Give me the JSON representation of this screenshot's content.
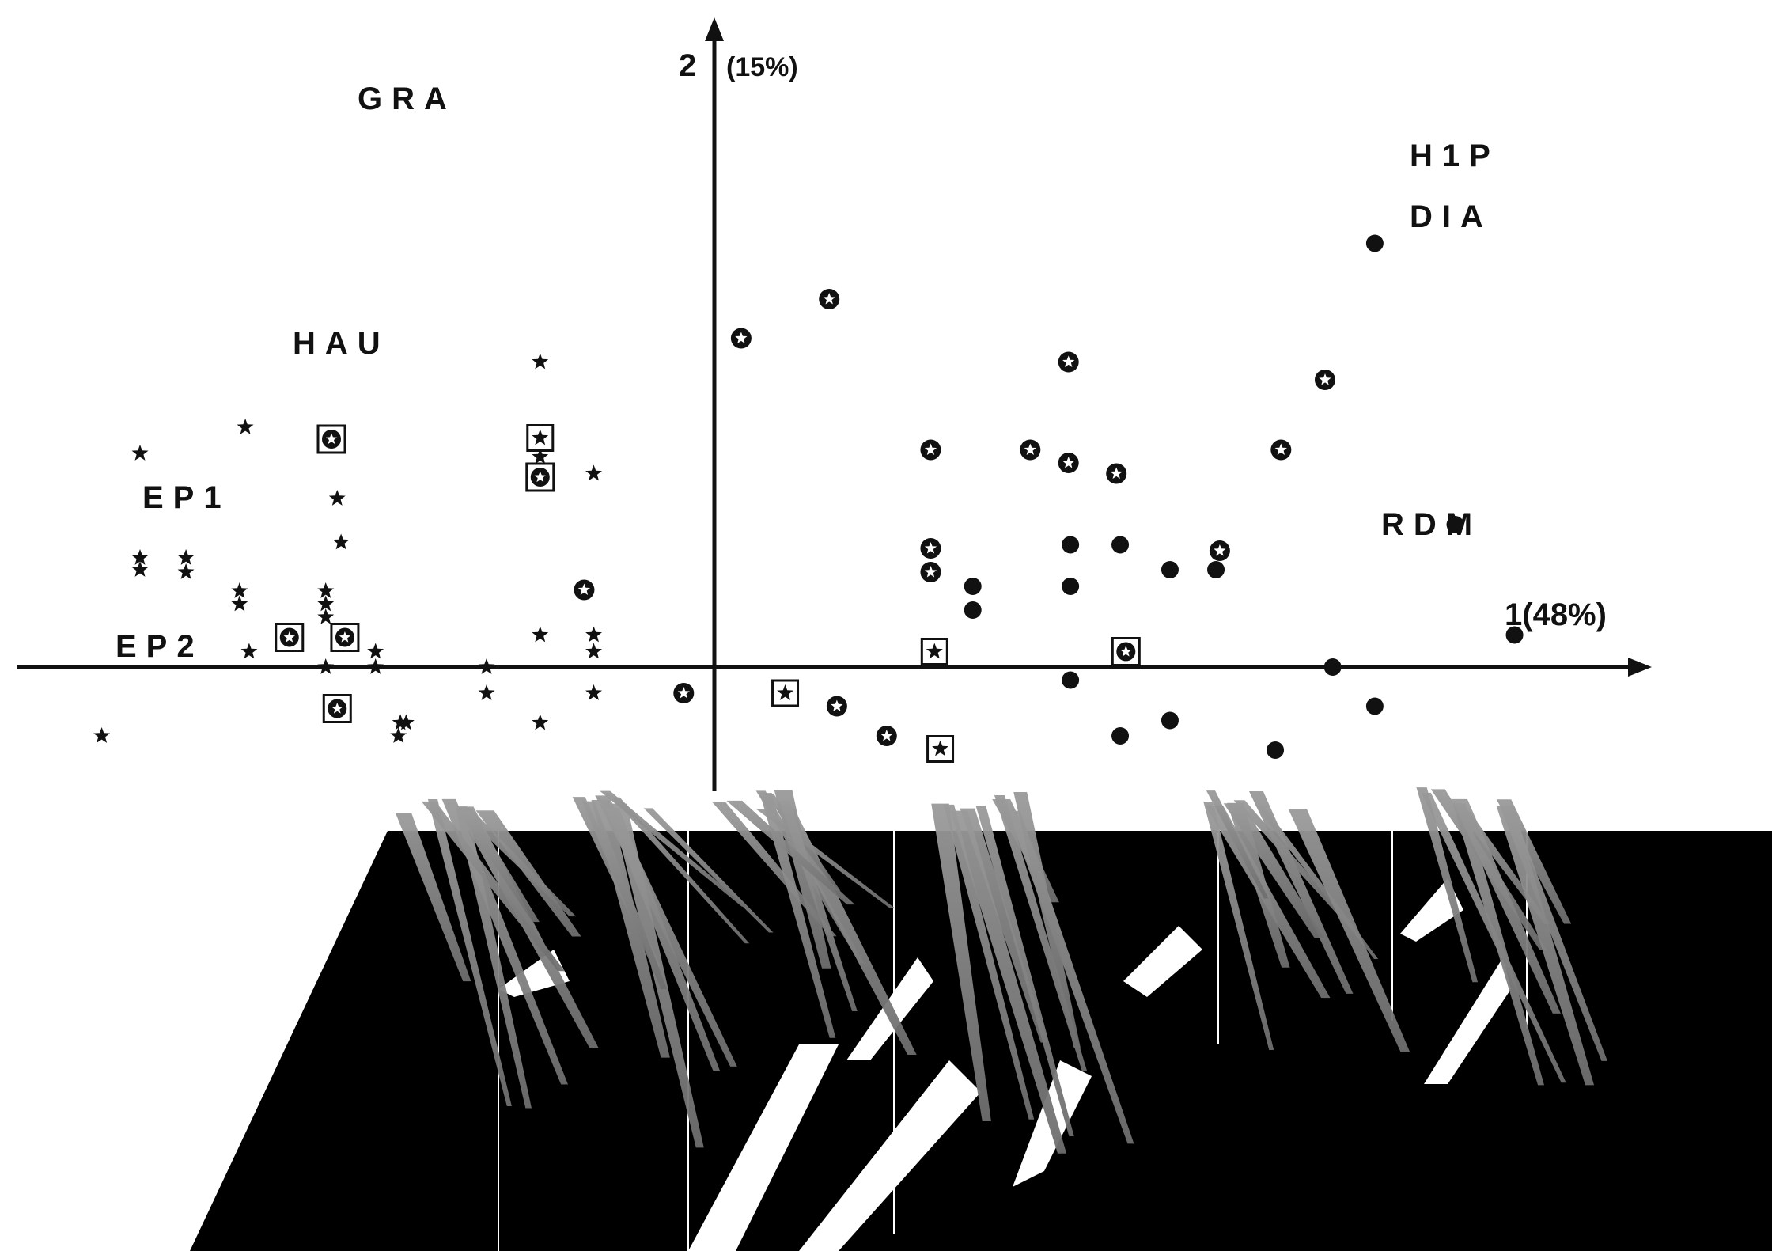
{
  "chart_data": {
    "type": "scatter",
    "title": "",
    "xlabel": "1(48%)",
    "ylabel": "(15%)",
    "ylabel_number": "2",
    "xlim": [
      -4.3,
      5.5
    ],
    "ylim": [
      -1.55,
      3.7
    ],
    "grid": false,
    "axes_through_origin": true,
    "marker_color": "#111111",
    "region_labels": [
      "GRA",
      "HAU",
      "EP1",
      "EP2",
      "H1P",
      "DIA",
      "RDM"
    ],
    "series": [
      {
        "marker": "star",
        "points": [
          [
            -3.0,
            1.8
          ],
          [
            -2.45,
            2.02
          ],
          [
            -1.97,
            1.42
          ],
          [
            -1.95,
            1.05
          ],
          [
            -3.0,
            0.92
          ],
          [
            -2.76,
            0.92
          ],
          [
            -3.0,
            0.82
          ],
          [
            -2.76,
            0.8
          ],
          [
            -2.48,
            0.64
          ],
          [
            -2.48,
            0.53
          ],
          [
            -2.03,
            0.64
          ],
          [
            -2.03,
            0.53
          ],
          [
            -2.03,
            0.42
          ],
          [
            -2.43,
            0.13
          ],
          [
            -1.77,
            0.13
          ],
          [
            -1.77,
            0.0
          ],
          [
            -2.03,
            0.0
          ],
          [
            -1.19,
            0.0
          ],
          [
            -0.91,
            2.57
          ],
          [
            -0.91,
            1.77
          ],
          [
            -0.63,
            1.63
          ],
          [
            -0.91,
            0.27
          ],
          [
            -0.63,
            0.27
          ],
          [
            -0.63,
            0.13
          ],
          [
            -1.19,
            -0.22
          ],
          [
            -0.63,
            -0.22
          ],
          [
            -0.91,
            -0.47
          ],
          [
            -1.61,
            -0.47
          ],
          [
            -1.64,
            -0.47
          ],
          [
            -1.65,
            -0.58
          ],
          [
            -3.2,
            -0.58
          ]
        ]
      },
      {
        "marker": "star-in-box",
        "points": [
          [
            -0.91,
            1.93
          ],
          [
            1.15,
            0.13
          ],
          [
            0.37,
            -0.22
          ],
          [
            1.18,
            -0.69
          ]
        ]
      },
      {
        "marker": "circle-star-in-box",
        "points": [
          [
            -2.0,
            1.92
          ],
          [
            -0.91,
            1.6
          ],
          [
            -2.22,
            0.25
          ],
          [
            -1.93,
            0.25
          ],
          [
            -1.97,
            -0.35
          ],
          [
            2.15,
            0.13
          ]
        ]
      },
      {
        "marker": "circle-star",
        "points": [
          [
            0.6,
            3.1
          ],
          [
            0.14,
            2.77
          ],
          [
            1.85,
            2.57
          ],
          [
            3.19,
            2.42
          ],
          [
            1.13,
            1.83
          ],
          [
            1.65,
            1.83
          ],
          [
            1.85,
            1.72
          ],
          [
            2.1,
            1.63
          ],
          [
            2.96,
            1.83
          ],
          [
            1.13,
            1.0
          ],
          [
            1.13,
            0.8
          ],
          [
            -0.68,
            0.65
          ],
          [
            -0.16,
            -0.22
          ],
          [
            0.64,
            -0.33
          ],
          [
            0.9,
            -0.58
          ],
          [
            2.64,
            0.98
          ]
        ]
      },
      {
        "marker": "circle",
        "points": [
          [
            3.45,
            3.57
          ],
          [
            3.87,
            1.2
          ],
          [
            1.86,
            1.03
          ],
          [
            2.12,
            1.03
          ],
          [
            2.38,
            0.82
          ],
          [
            2.62,
            0.82
          ],
          [
            1.35,
            0.68
          ],
          [
            1.86,
            0.68
          ],
          [
            1.35,
            0.48
          ],
          [
            4.18,
            0.27
          ],
          [
            3.23,
            0.0
          ],
          [
            1.86,
            -0.11
          ],
          [
            3.45,
            -0.33
          ],
          [
            2.38,
            -0.45
          ],
          [
            2.12,
            -0.58
          ],
          [
            2.93,
            -0.7
          ]
        ]
      }
    ]
  }
}
